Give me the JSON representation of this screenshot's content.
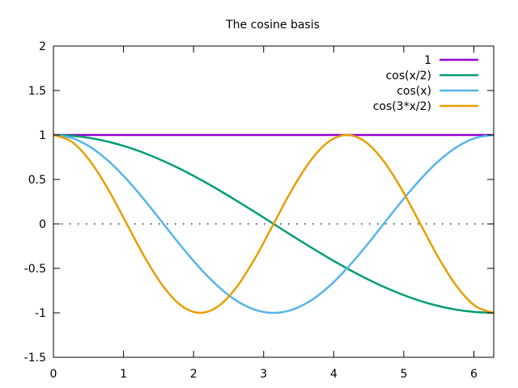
{
  "chart_data": {
    "type": "line",
    "title": "The cosine basis",
    "xlabel": "",
    "ylabel": "",
    "xlim": [
      0,
      6.283185307179586
    ],
    "ylim": [
      -1.5,
      2
    ],
    "xticks": [
      "0",
      "1",
      "2",
      "3",
      "4",
      "5",
      "6"
    ],
    "yticks": [
      "-1.5",
      "-1",
      "-0.5",
      "0",
      "0.5",
      "1",
      "1.5",
      "2"
    ],
    "grid": false,
    "legend_position": "top-right",
    "zero_line": "dotted",
    "series": [
      {
        "name": "1",
        "color": "#9400d3",
        "x": [
          0,
          0.2618,
          0.5236,
          0.7854,
          1.0472,
          1.309,
          1.5708,
          1.8326,
          2.0944,
          2.3562,
          2.618,
          2.8798,
          3.1416,
          3.4034,
          3.6652,
          3.927,
          4.1888,
          4.4506,
          4.7124,
          4.9742,
          5.236,
          5.4978,
          5.7596,
          6.0214,
          6.2832
        ],
        "y": [
          1,
          1,
          1,
          1,
          1,
          1,
          1,
          1,
          1,
          1,
          1,
          1,
          1,
          1,
          1,
          1,
          1,
          1,
          1,
          1,
          1,
          1,
          1,
          1,
          1
        ]
      },
      {
        "name": "cos(x/2)",
        "color": "#009e73",
        "x": [
          0,
          0.2618,
          0.5236,
          0.7854,
          1.0472,
          1.309,
          1.5708,
          1.8326,
          2.0944,
          2.3562,
          2.618,
          2.8798,
          3.1416,
          3.4034,
          3.6652,
          3.927,
          4.1888,
          4.4506,
          4.7124,
          4.9742,
          5.236,
          5.4978,
          5.7596,
          6.0214,
          6.2832
        ],
        "y": [
          1,
          0.991,
          0.966,
          0.924,
          0.866,
          0.793,
          0.707,
          0.609,
          0.5,
          0.383,
          0.259,
          0.131,
          0,
          -0.131,
          -0.259,
          -0.383,
          -0.5,
          -0.609,
          -0.707,
          -0.793,
          -0.866,
          -0.924,
          -0.966,
          -0.991,
          -1
        ]
      },
      {
        "name": "cos(x)",
        "color": "#56b4e9",
        "x": [
          0,
          0.2618,
          0.5236,
          0.7854,
          1.0472,
          1.309,
          1.5708,
          1.8326,
          2.0944,
          2.3562,
          2.618,
          2.8798,
          3.1416,
          3.4034,
          3.6652,
          3.927,
          4.1888,
          4.4506,
          4.7124,
          4.9742,
          5.236,
          5.4978,
          5.7596,
          6.0214,
          6.2832
        ],
        "y": [
          1,
          0.966,
          0.866,
          0.707,
          0.5,
          0.259,
          0,
          -0.259,
          -0.5,
          -0.707,
          -0.866,
          -0.966,
          -1,
          -0.966,
          -0.866,
          -0.707,
          -0.5,
          -0.259,
          0,
          0.259,
          0.5,
          0.707,
          0.866,
          0.966,
          1
        ]
      },
      {
        "name": "cos(3*x/2)",
        "color": "#e69f00",
        "x": [
          0,
          0.2618,
          0.5236,
          0.7854,
          1.0472,
          1.309,
          1.5708,
          1.8326,
          2.0944,
          2.3562,
          2.618,
          2.8798,
          3.1416,
          3.4034,
          3.6652,
          3.927,
          4.1888,
          4.4506,
          4.7124,
          4.9742,
          5.236,
          5.4978,
          5.7596,
          6.0214,
          6.2832
        ],
        "y": [
          1,
          0.924,
          0.707,
          0.383,
          0,
          -0.383,
          -0.707,
          -0.924,
          -1,
          -0.924,
          -0.707,
          -0.383,
          0,
          0.383,
          0.707,
          0.924,
          1,
          0.924,
          0.707,
          0.383,
          0,
          -0.383,
          -0.707,
          -0.924,
          -1
        ]
      }
    ]
  }
}
